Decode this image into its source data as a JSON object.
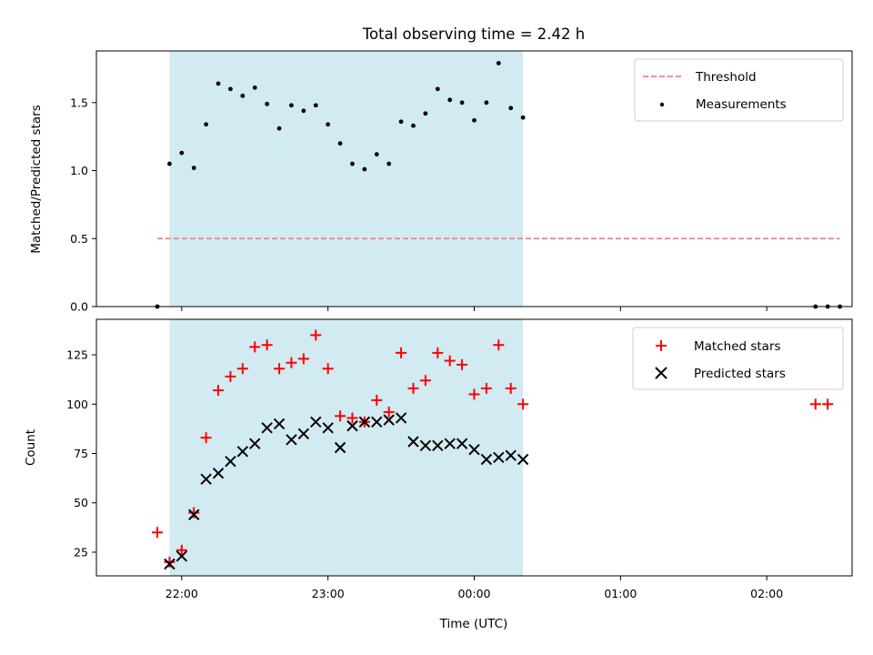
{
  "chart_data": {
    "type": "scatter",
    "title": "Total observing time = 2.42 h",
    "xlabel": "Time (UTC)",
    "x_range": [
      "21:25",
      "02:35"
    ],
    "xticks": [
      "22:00",
      "23:00",
      "00:00",
      "01:00",
      "02:00"
    ],
    "observing_window": [
      "21:55",
      "00:20"
    ],
    "window_color": "#add8e6",
    "panels": [
      {
        "id": "ratio",
        "ylabel": "Matched/Predicted stars",
        "ylim": [
          0,
          1.88
        ],
        "yticks": [
          "0.0",
          "0.5",
          "1.0",
          "1.5"
        ],
        "legend": "top-right",
        "threshold": {
          "name": "Threshold",
          "value": 0.5,
          "x_range": [
            "21:50",
            "02:30"
          ],
          "color": "#f08080"
        },
        "series": [
          {
            "name": "Measurements",
            "color": "#000000",
            "marker": "dot",
            "x": [
              "21:50",
              "21:55",
              "22:00",
              "22:05",
              "22:10",
              "22:15",
              "22:20",
              "22:25",
              "22:30",
              "22:35",
              "22:40",
              "22:45",
              "22:50",
              "22:55",
              "23:00",
              "23:05",
              "23:10",
              "23:15",
              "23:20",
              "23:25",
              "23:30",
              "23:35",
              "23:40",
              "23:45",
              "23:50",
              "23:55",
              "00:00",
              "00:05",
              "00:10",
              "00:15",
              "00:20",
              "02:20",
              "02:25",
              "02:30"
            ],
            "y": [
              0.0,
              1.05,
              1.13,
              1.02,
              1.34,
              1.64,
              1.6,
              1.55,
              1.61,
              1.49,
              1.31,
              1.48,
              1.44,
              1.48,
              1.34,
              1.2,
              1.05,
              1.01,
              1.12,
              1.05,
              1.36,
              1.33,
              1.42,
              1.6,
              1.52,
              1.5,
              1.37,
              1.5,
              1.79,
              1.46,
              1.39,
              0.0,
              0.0,
              0.0
            ]
          }
        ]
      },
      {
        "id": "count",
        "ylabel": "Count",
        "ylim": [
          13,
          143
        ],
        "yticks": [
          "25",
          "50",
          "75",
          "100",
          "125"
        ],
        "legend": "top-right",
        "series": [
          {
            "name": "Matched stars",
            "color": "#ff0000",
            "marker": "plus",
            "x": [
              "21:50",
              "21:55",
              "22:00",
              "22:05",
              "22:10",
              "22:15",
              "22:20",
              "22:25",
              "22:30",
              "22:35",
              "22:40",
              "22:45",
              "22:50",
              "22:55",
              "23:00",
              "23:05",
              "23:10",
              "23:15",
              "23:20",
              "23:25",
              "23:30",
              "23:35",
              "23:40",
              "23:45",
              "23:50",
              "23:55",
              "00:00",
              "00:05",
              "00:10",
              "00:15",
              "00:20",
              "02:20",
              "02:25"
            ],
            "y": [
              35,
              20,
              26,
              45,
              83,
              107,
              114,
              118,
              129,
              130,
              118,
              121,
              123,
              135,
              118,
              94,
              93,
              91,
              102,
              96,
              126,
              108,
              112,
              126,
              122,
              120,
              105,
              108,
              130,
              108,
              100,
              100,
              100
            ]
          },
          {
            "name": "Predicted stars",
            "color": "#000000",
            "marker": "x",
            "x": [
              "21:55",
              "22:00",
              "22:05",
              "22:10",
              "22:15",
              "22:20",
              "22:25",
              "22:30",
              "22:35",
              "22:40",
              "22:45",
              "22:50",
              "22:55",
              "23:00",
              "23:05",
              "23:10",
              "23:15",
              "23:20",
              "23:25",
              "23:30",
              "23:35",
              "23:40",
              "23:45",
              "23:50",
              "23:55",
              "00:00",
              "00:05",
              "00:10",
              "00:15",
              "00:20"
            ],
            "y": [
              19,
              23,
              44,
              62,
              65,
              71,
              76,
              80,
              88,
              90,
              82,
              85,
              91,
              88,
              78,
              89,
              91,
              91,
              92,
              93,
              81,
              79,
              79,
              80,
              80,
              77,
              72,
              73,
              74,
              72
            ]
          }
        ]
      }
    ]
  }
}
